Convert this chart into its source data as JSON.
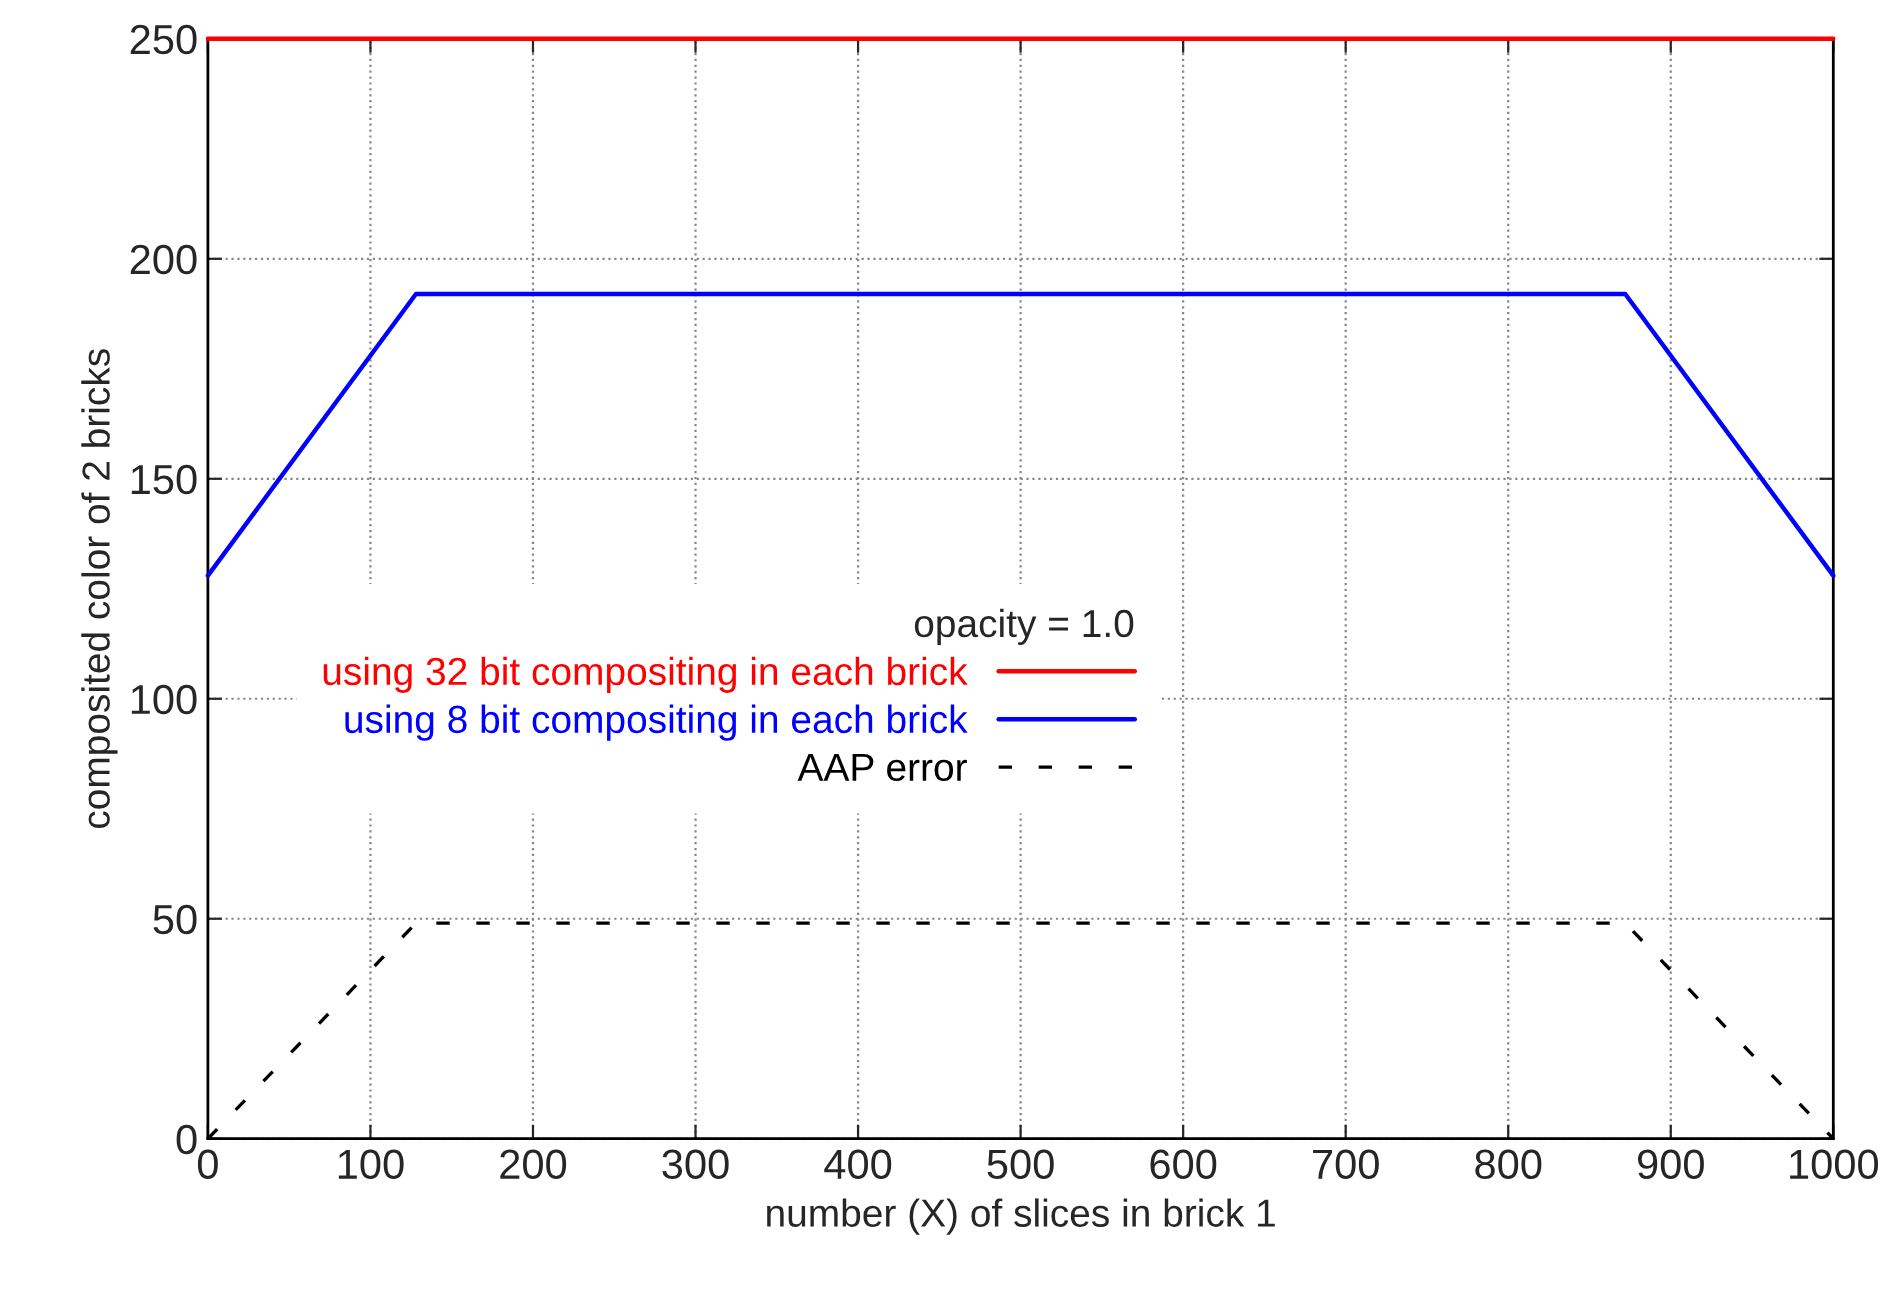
{
  "chart_data": {
    "type": "line",
    "xlabel": "number (X) of slices in brick 1",
    "ylabel": "composited color of 2 bricks",
    "legend_title": "opacity = 1.0",
    "series": [
      {
        "name": "using 32 bit compositing in each brick",
        "color": "#ff0000",
        "x": [
          0,
          1000
        ],
        "values": [
          250,
          250
        ],
        "line_style": "solid"
      },
      {
        "name": "using 8 bit compositing in each brick",
        "color": "#0000ff",
        "x": [
          0,
          128,
          872,
          1000
        ],
        "values": [
          128,
          192,
          192,
          128
        ],
        "line_style": "solid"
      },
      {
        "name": "AAP error",
        "color": "#000000",
        "x": [
          0,
          128,
          872,
          1000
        ],
        "values": [
          0,
          49,
          49,
          0
        ],
        "line_style": "dashed"
      }
    ],
    "xlim": [
      0,
      1000
    ],
    "ylim": [
      0,
      250
    ],
    "xticks": [
      0,
      100,
      200,
      300,
      400,
      500,
      600,
      700,
      800,
      900,
      1000
    ],
    "yticks": [
      0,
      50,
      100,
      150,
      200,
      250
    ],
    "grid": true,
    "legend": "center"
  }
}
